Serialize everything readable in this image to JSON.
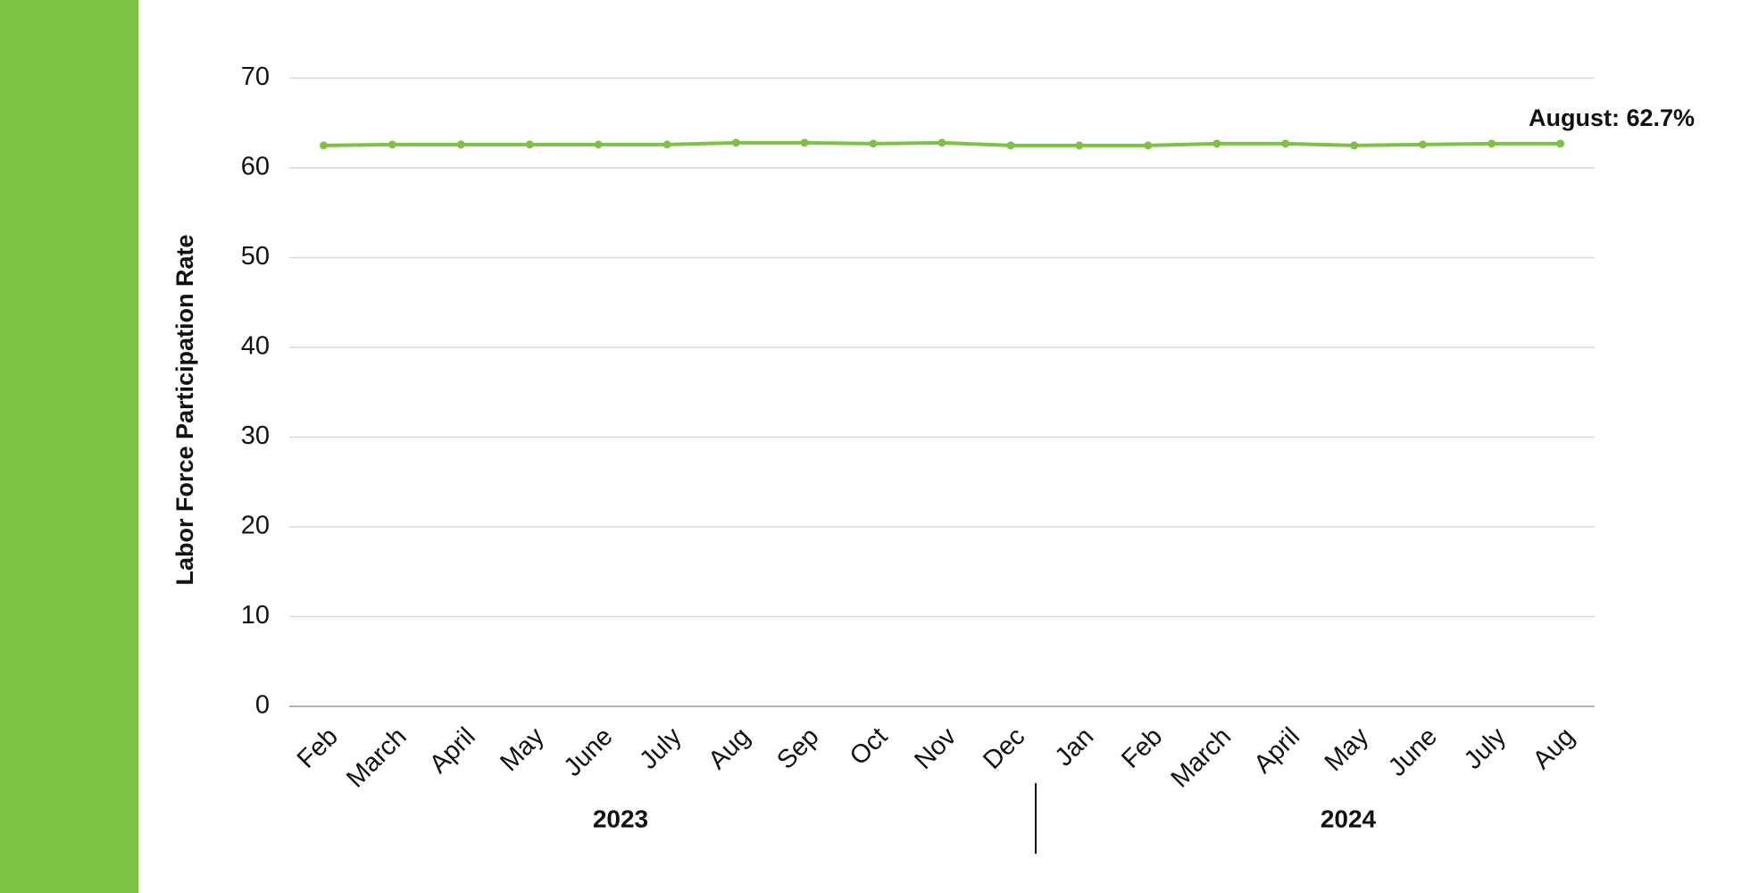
{
  "chart_data": {
    "type": "line",
    "y_axis_label": "Labor Force Participation Rate",
    "categories": [
      "Feb",
      "March",
      "April",
      "May",
      "June",
      "July",
      "Aug",
      "Sep",
      "Oct",
      "Nov",
      "Dec",
      "Jan",
      "Feb",
      "March",
      "April",
      "May",
      "June",
      "July",
      "Aug"
    ],
    "values": [
      62.5,
      62.6,
      62.6,
      62.6,
      62.6,
      62.6,
      62.8,
      62.8,
      62.7,
      62.8,
      62.5,
      62.5,
      62.5,
      62.7,
      62.7,
      62.5,
      62.6,
      62.7,
      62.7
    ],
    "color": "#7dc242",
    "x_groups": [
      "2023",
      "2024"
    ],
    "annotation": "August: 62.7%",
    "ylim": [
      0,
      70
    ],
    "yticks": [
      0,
      10,
      20,
      30,
      40,
      50,
      60,
      70
    ],
    "grid": true
  }
}
